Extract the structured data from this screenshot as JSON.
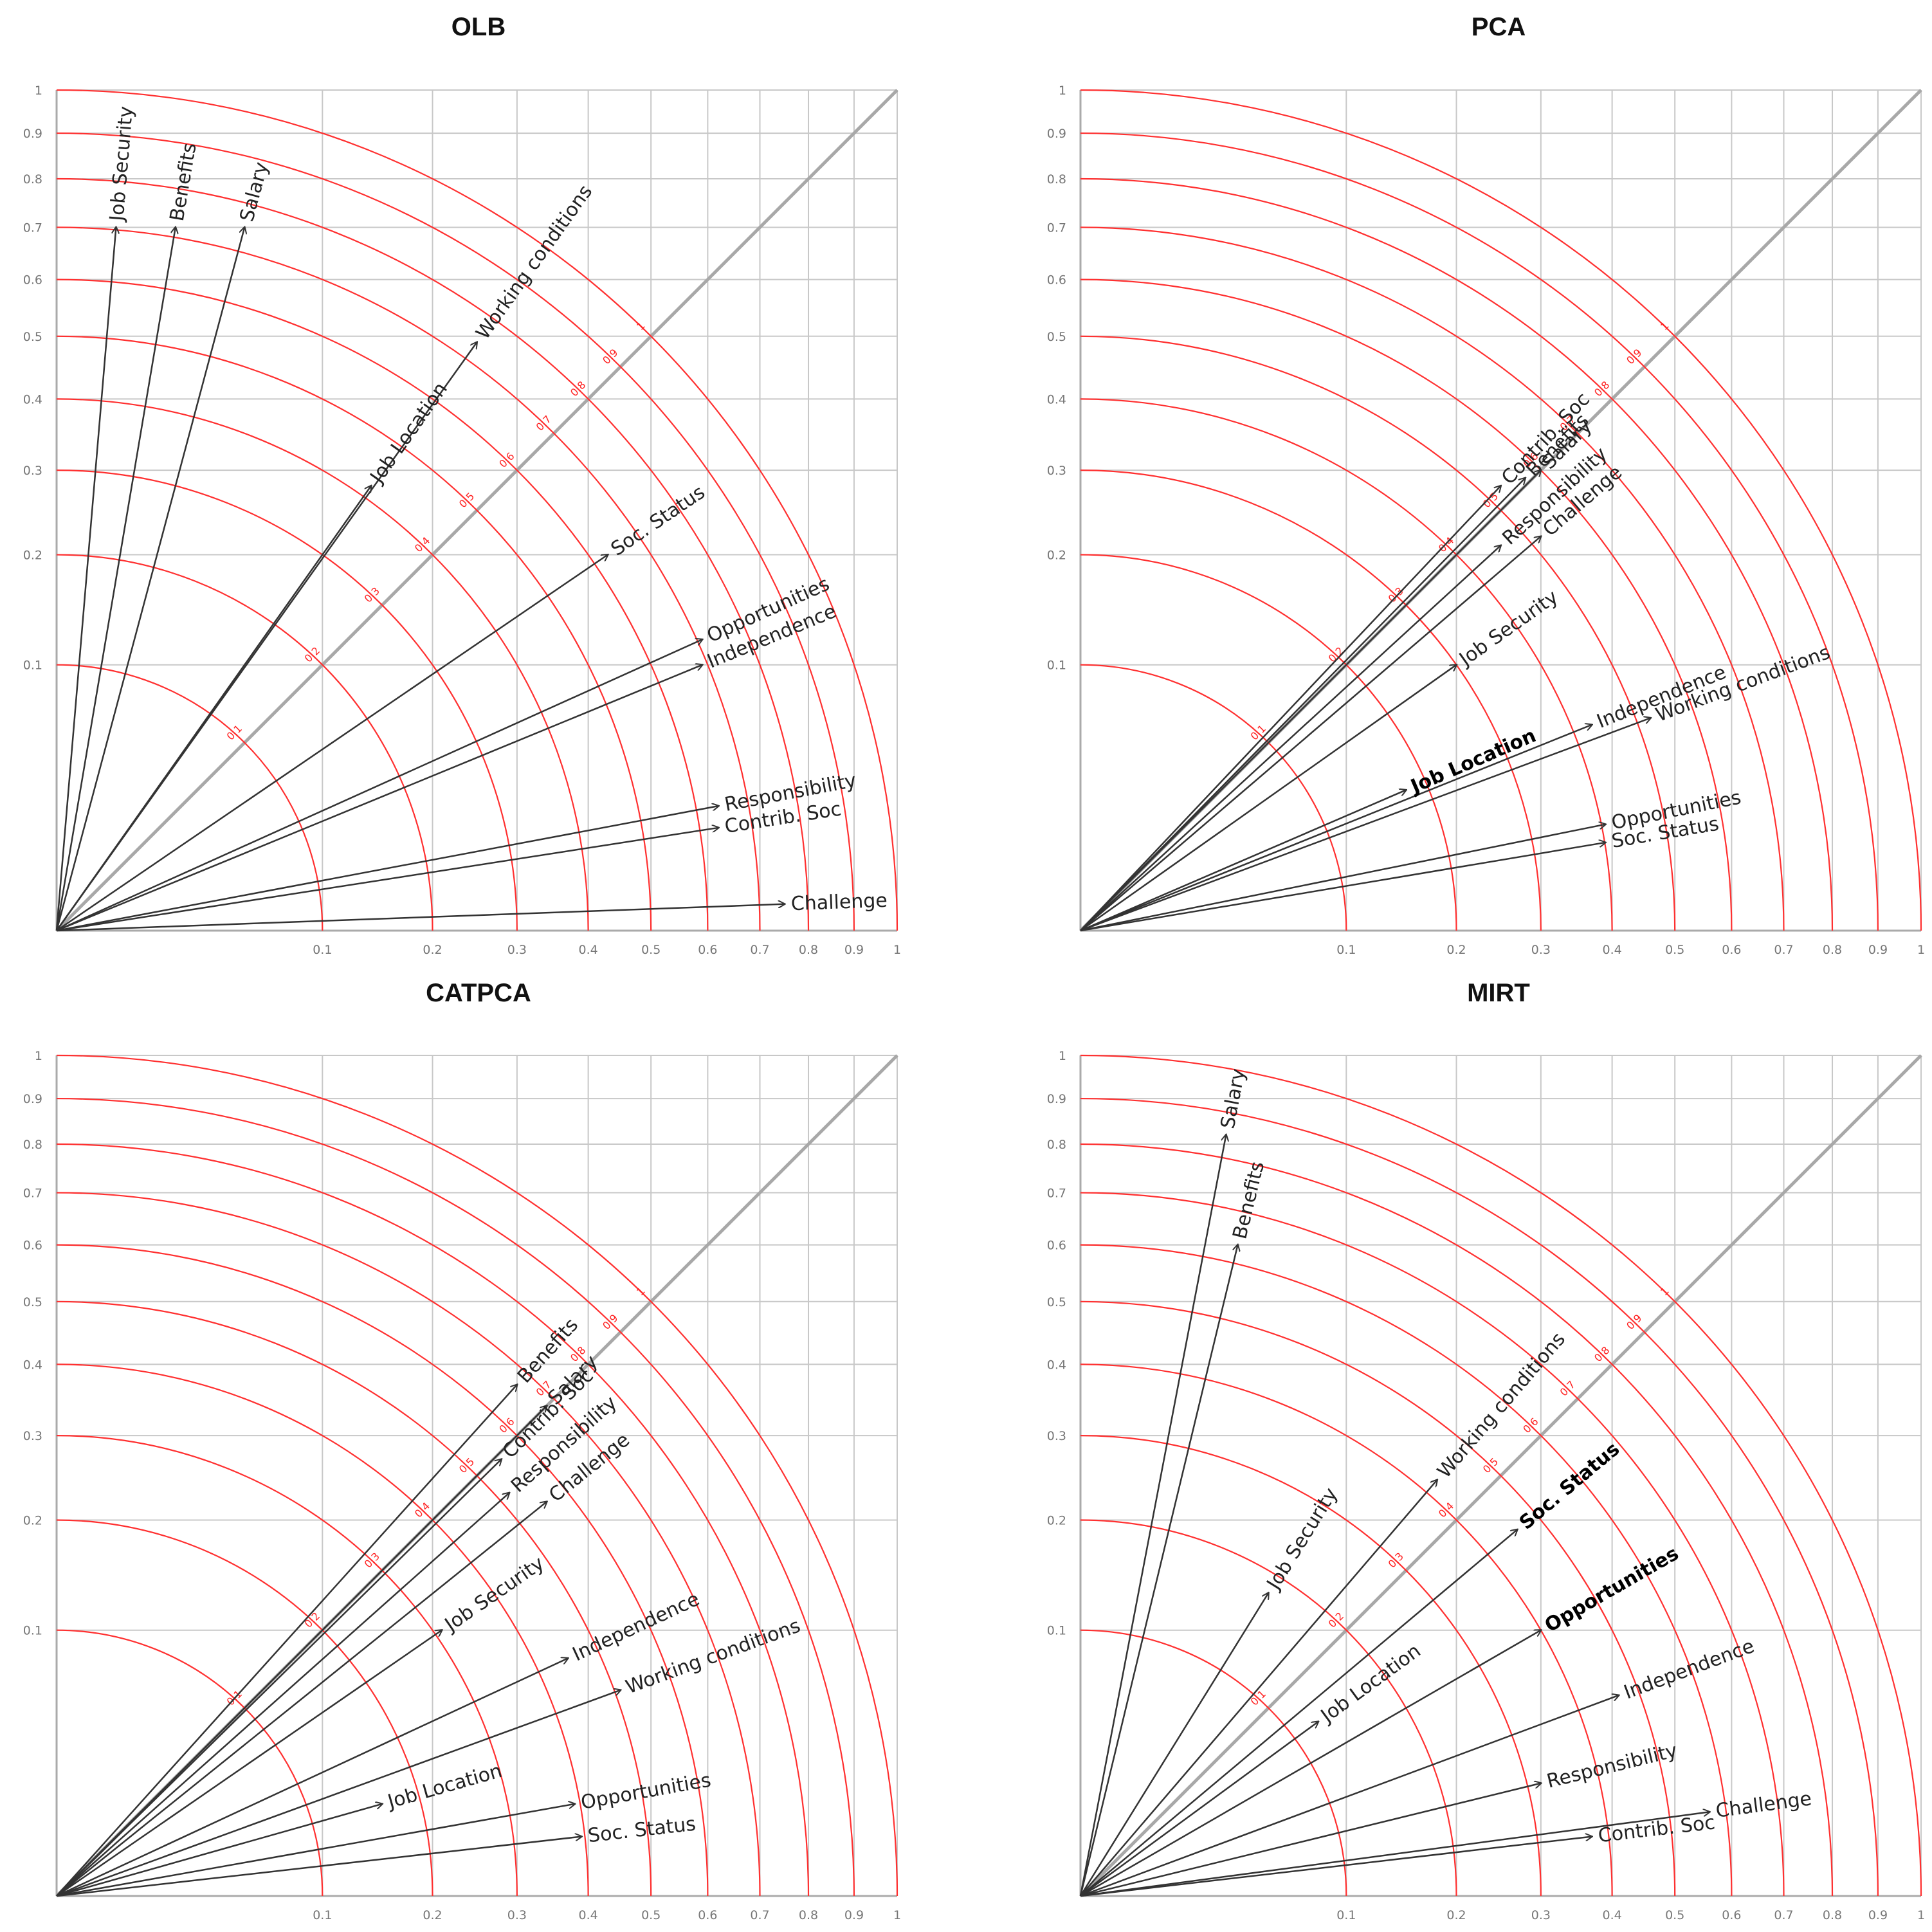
{
  "chart_data": [
    {
      "type": "scatter",
      "title": "OLB",
      "xlim": [
        0,
        1
      ],
      "ylim": [
        0,
        1
      ],
      "scale": "sqrt",
      "grid": true,
      "diagonal": true,
      "ticks": [
        "0.1",
        "0.2",
        "0.3",
        "0.4",
        "0.5",
        "0.6",
        "0.7",
        "0.8",
        "0.9",
        "1"
      ],
      "rings": [
        "0.1",
        "0.2",
        "0.3",
        "0.4",
        "0.5",
        "0.6",
        "0.7",
        "0.8",
        "0.9",
        "1"
      ],
      "vectors": [
        {
          "name": "Job Security",
          "x": 0.005,
          "y": 0.7
        },
        {
          "name": "Benefits",
          "x": 0.02,
          "y": 0.7
        },
        {
          "name": "Salary",
          "x": 0.05,
          "y": 0.7
        },
        {
          "name": "Working conditions",
          "x": 0.25,
          "y": 0.49
        },
        {
          "name": "Job Location",
          "x": 0.14,
          "y": 0.28
        },
        {
          "name": "Soc. Status",
          "x": 0.43,
          "y": 0.2
        },
        {
          "name": "Opportunities",
          "x": 0.59,
          "y": 0.12
        },
        {
          "name": "Independence",
          "x": 0.59,
          "y": 0.1
        },
        {
          "name": "Responsibility",
          "x": 0.62,
          "y": 0.022
        },
        {
          "name": "Contrib. Soc",
          "x": 0.62,
          "y": 0.015
        },
        {
          "name": "Challenge",
          "x": 0.75,
          "y": 0.001
        }
      ]
    },
    {
      "type": "scatter",
      "title": "PCA",
      "xlim": [
        0,
        1
      ],
      "ylim": [
        0,
        1
      ],
      "scale": "sqrt",
      "grid": true,
      "diagonal": true,
      "ticks": [
        "0.1",
        "0.2",
        "0.3",
        "0.4",
        "0.5",
        "0.6",
        "0.7",
        "0.8",
        "0.9",
        "1"
      ],
      "rings": [
        "0.1",
        "0.2",
        "0.3",
        "0.4",
        "0.5",
        "0.6",
        "0.7",
        "0.8",
        "0.9",
        "1"
      ],
      "vectors": [
        {
          "name": "Contrib. Soc",
          "x": 0.25,
          "y": 0.28,
          "bold": false
        },
        {
          "name": "Benefits",
          "x": 0.28,
          "y": 0.29,
          "bold": false
        },
        {
          "name": "Salary",
          "x": 0.3,
          "y": 0.3,
          "bold": false
        },
        {
          "name": "Responsibility",
          "x": 0.25,
          "y": 0.21,
          "bold": false
        },
        {
          "name": "Challenge",
          "x": 0.3,
          "y": 0.22,
          "bold": false
        },
        {
          "name": "Job Security",
          "x": 0.2,
          "y": 0.1,
          "bold": false
        },
        {
          "name": "Independence",
          "x": 0.37,
          "y": 0.06,
          "bold": false
        },
        {
          "name": "Working conditions",
          "x": 0.46,
          "y": 0.064,
          "bold": false
        },
        {
          "name": "Job Location",
          "x": 0.15,
          "y": 0.028,
          "bold": true
        },
        {
          "name": "Opportunities",
          "x": 0.39,
          "y": 0.016,
          "bold": false
        },
        {
          "name": "Soc. Status",
          "x": 0.39,
          "y": 0.011,
          "bold": false
        }
      ]
    },
    {
      "type": "scatter",
      "title": "CATPCA",
      "xlim": [
        0,
        1
      ],
      "ylim": [
        0,
        1
      ],
      "scale": "sqrt",
      "grid": true,
      "diagonal": true,
      "ticks": [
        "0.1",
        "0.2",
        "0.3",
        "0.4",
        "0.5",
        "0.6",
        "0.7",
        "0.8",
        "0.9",
        "1"
      ],
      "rings": [
        "0.1",
        "0.2",
        "0.3",
        "0.4",
        "0.5",
        "0.6",
        "0.7",
        "0.8",
        "0.9",
        "1"
      ],
      "vectors": [
        {
          "name": "Benefits",
          "x": 0.3,
          "y": 0.37
        },
        {
          "name": "Salary",
          "x": 0.34,
          "y": 0.34
        },
        {
          "name": "Contrib. Soc",
          "x": 0.28,
          "y": 0.27
        },
        {
          "name": "Responsibility",
          "x": 0.29,
          "y": 0.23
        },
        {
          "name": "Challenge",
          "x": 0.34,
          "y": 0.22
        },
        {
          "name": "Job Security",
          "x": 0.21,
          "y": 0.1
        },
        {
          "name": "Independence",
          "x": 0.37,
          "y": 0.08
        },
        {
          "name": "Working conditions",
          "x": 0.45,
          "y": 0.06
        },
        {
          "name": "Job Location",
          "x": 0.15,
          "y": 0.012
        },
        {
          "name": "Opportunities",
          "x": 0.38,
          "y": 0.012
        },
        {
          "name": "Soc. Status",
          "x": 0.39,
          "y": 0.005
        }
      ]
    },
    {
      "type": "scatter",
      "title": "MIRT",
      "xlim": [
        0,
        1
      ],
      "ylim": [
        0,
        1
      ],
      "scale": "sqrt",
      "grid": true,
      "diagonal": true,
      "ticks": [
        "0.1",
        "0.2",
        "0.3",
        "0.4",
        "0.5",
        "0.6",
        "0.7",
        "0.8",
        "0.9",
        "1"
      ],
      "rings": [
        "0.1",
        "0.2",
        "0.3",
        "0.4",
        "0.5",
        "0.6",
        "0.7",
        "0.8",
        "0.9",
        "1"
      ],
      "vectors": [
        {
          "name": "Salary",
          "x": 0.03,
          "y": 0.82,
          "bold": false
        },
        {
          "name": "Benefits",
          "x": 0.035,
          "y": 0.6,
          "bold": false
        },
        {
          "name": "Job Security",
          "x": 0.05,
          "y": 0.13,
          "bold": false
        },
        {
          "name": "Working conditions",
          "x": 0.18,
          "y": 0.245,
          "bold": false
        },
        {
          "name": "Soc. Status",
          "x": 0.27,
          "y": 0.19,
          "bold": true
        },
        {
          "name": "Opportunities",
          "x": 0.3,
          "y": 0.1,
          "bold": true
        },
        {
          "name": "Job Location",
          "x": 0.08,
          "y": 0.043,
          "bold": false
        },
        {
          "name": "Independence",
          "x": 0.41,
          "y": 0.057,
          "bold": false
        },
        {
          "name": "Responsibility",
          "x": 0.3,
          "y": 0.018,
          "bold": false
        },
        {
          "name": "Challenge",
          "x": 0.56,
          "y": 0.01,
          "bold": false
        },
        {
          "name": "Contrib. Soc",
          "x": 0.37,
          "y": 0.005,
          "bold": false
        }
      ]
    }
  ]
}
